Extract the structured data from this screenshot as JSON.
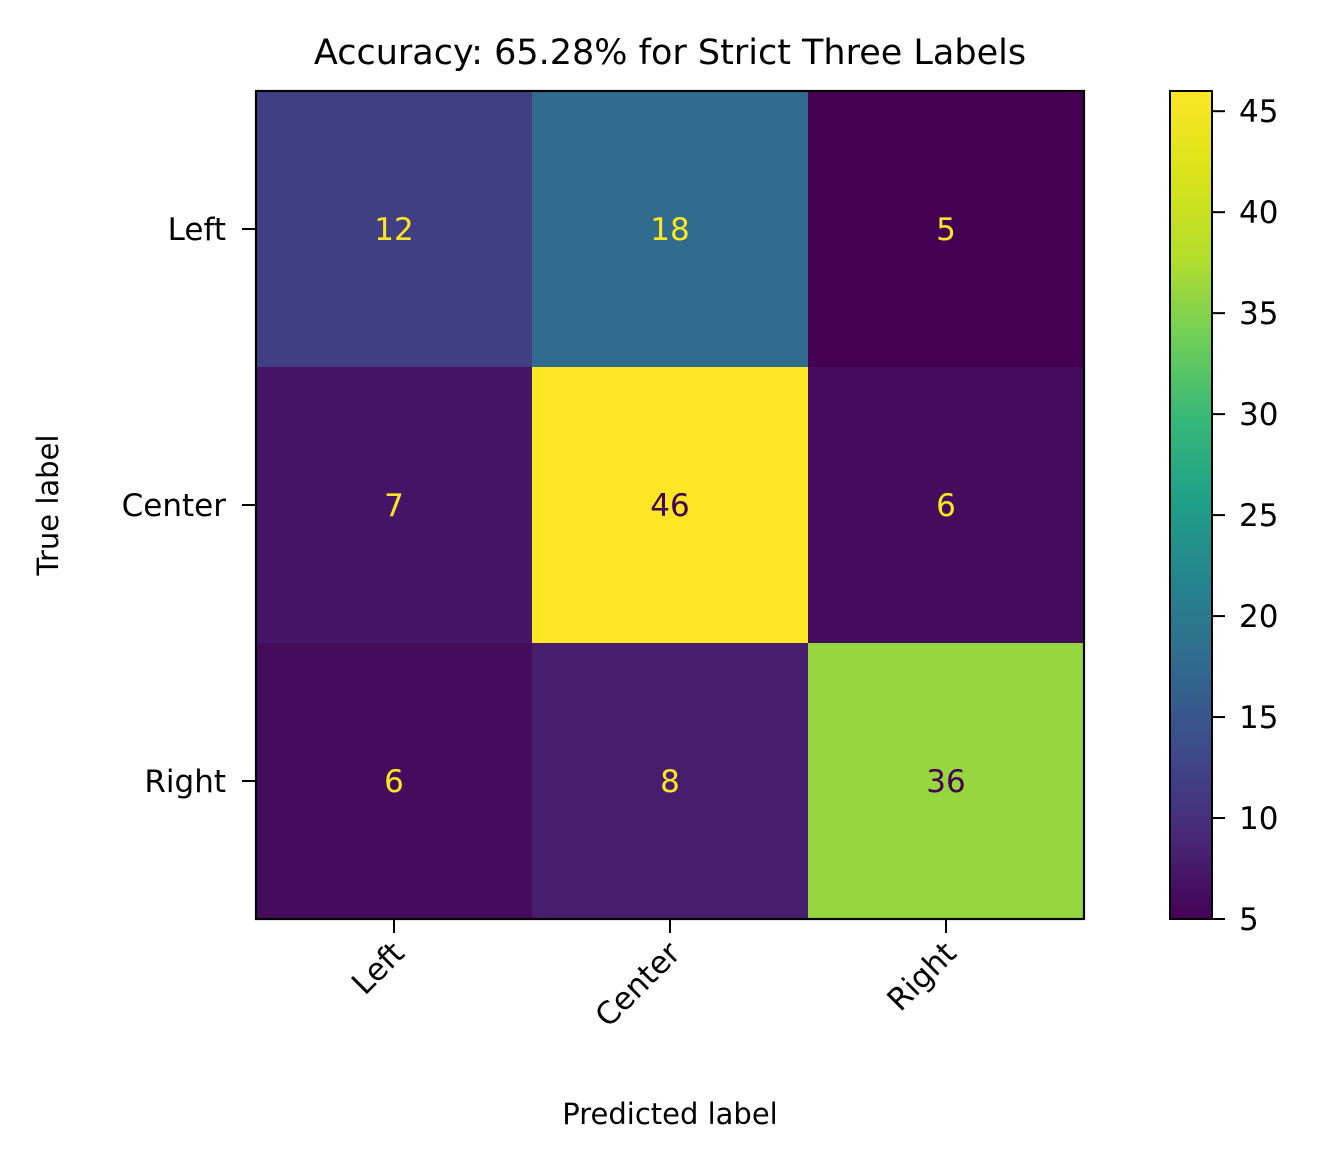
{
  "chart_data": {
    "type": "heatmap",
    "title": "Accuracy: 65.28% for Strict Three Labels",
    "xlabel": "Predicted label",
    "ylabel": "True label",
    "x_categories": [
      "Left",
      "Center",
      "Right"
    ],
    "y_categories": [
      "Left",
      "Center",
      "Right"
    ],
    "matrix": [
      [
        12,
        18,
        5
      ],
      [
        7,
        46,
        6
      ],
      [
        6,
        8,
        36
      ]
    ],
    "colormap": "viridis",
    "colorbar": {
      "vmin": 5,
      "vmax": 46,
      "ticks": [
        5,
        10,
        15,
        20,
        25,
        30,
        35,
        40,
        45
      ]
    },
    "text_colors": {
      "on_dark": "#fde725",
      "on_light": "#440154"
    },
    "grid": false
  }
}
